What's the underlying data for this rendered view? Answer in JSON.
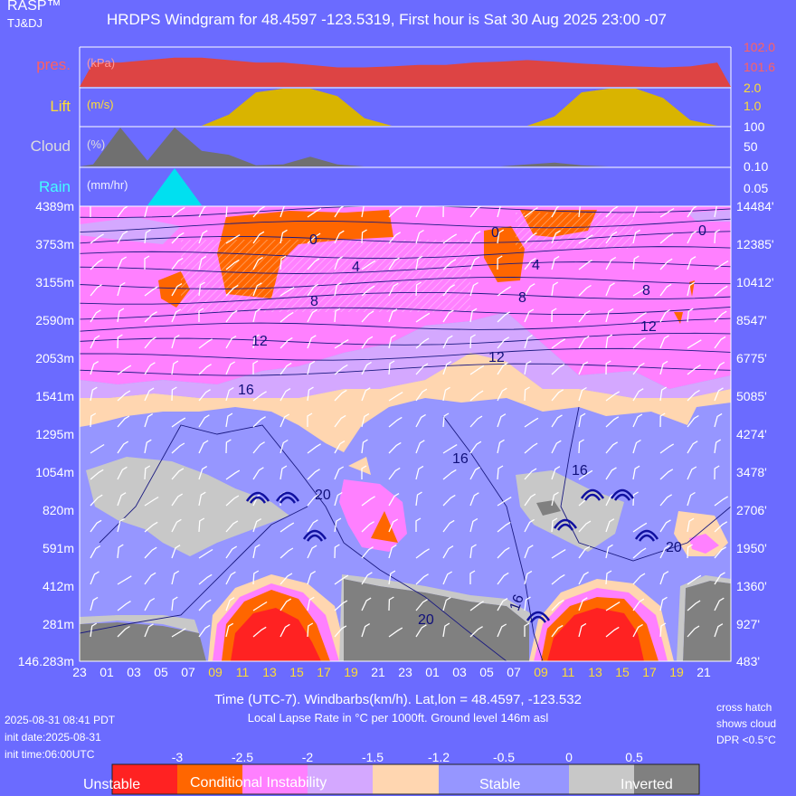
{
  "brand": "RASP™",
  "brand_sub": "TJ&DJ",
  "title": "HRDPS Windgram for 48.4597 -123.5319, First hour is Sat 30 Aug 2025 23:00 -07",
  "panels": {
    "pres": {
      "label": "pres.",
      "unit": "(kPa)",
      "ticks": [
        "102.0",
        "101.6"
      ]
    },
    "lift": {
      "label": "Lift",
      "unit": "(m/s)",
      "ticks": [
        "2.0",
        "1.0"
      ]
    },
    "cloud": {
      "label": "Cloud",
      "unit": "(%)",
      "ticks": [
        "100",
        "50",
        "0.10"
      ]
    },
    "rain": {
      "label": "Rain",
      "unit": "(mm/hr)",
      "ticks": [
        "0.05"
      ]
    }
  },
  "left_ticks": [
    "4389m",
    "3753m",
    "3155m",
    "2590m",
    "2053m",
    "1541m",
    "1295m",
    "1054m",
    "820m",
    "591m",
    "412m",
    "281m",
    "146.283m"
  ],
  "right_ticks": [
    "14484'",
    "12385'",
    "10412'",
    "8547'",
    "6775'",
    "5085'",
    "4274'",
    "3478'",
    "2706'",
    "1950'",
    "1360'",
    "927'",
    "483'"
  ],
  "x_ticks": [
    "23",
    "01",
    "03",
    "05",
    "07",
    "09",
    "11",
    "13",
    "15",
    "17",
    "19",
    "21",
    "23",
    "01",
    "03",
    "05",
    "07",
    "09",
    "11",
    "13",
    "15",
    "17",
    "19",
    "21"
  ],
  "x_caption": "Time (UTC-7). Windbarbs(km/h). Lat,lon = 48.4597, -123.532",
  "lapse_caption": "Local Lapse Rate in °C per 1000ft.   Ground level 146m asl",
  "hatch_note": [
    "cross hatch",
    "shows cloud",
    "DPR <0.5°C"
  ],
  "timestamps": [
    "2025-08-31 08:41 PDT",
    "init date:2025-08-31",
    "init time:06:00UTC"
  ],
  "legend": {
    "numbers": [
      "-3",
      "-2.5",
      "-2",
      "-1.5",
      "-1.2",
      "-0.5",
      "0",
      "0.5"
    ],
    "labels": [
      "Unstable",
      "Conditional Instability",
      "Stable",
      "Inverted"
    ]
  },
  "colors": {
    "background": "#6b6bff",
    "pres": "#dd4444",
    "lift": "#d9b400",
    "cloud": "#707070",
    "rain": "#00e0f0",
    "unstable": "#ff2222",
    "conditional": "#ff6600",
    "pink": "#ff80ff",
    "lilac": "#d4a8ff",
    "peach": "#ffd6b0",
    "stable": "#9696ff",
    "inverted": "#c8c8c8",
    "daytime_tick": "#ffdd33"
  },
  "chart_data": {
    "type": "heatmap",
    "title": "HRDPS Windgram for 48.4597 -123.5319, First hour is Sat 30 Aug 2025 23:00 -07",
    "xlabel": "Time (UTC-7). Windbarbs(km/h). Lat,lon = 48.4597, -123.532",
    "ylabel": "",
    "x_categories": [
      "23",
      "01",
      "03",
      "05",
      "07",
      "09",
      "11",
      "13",
      "15",
      "17",
      "19",
      "21",
      "23",
      "01",
      "03",
      "05",
      "07",
      "09",
      "11",
      "13",
      "15",
      "17",
      "19",
      "21"
    ],
    "y_levels_m": [
      4389,
      3753,
      3155,
      2590,
      2053,
      1541,
      1295,
      1054,
      820,
      591,
      412,
      281,
      146.283
    ],
    "y_levels_ft": [
      14484,
      12385,
      10412,
      8547,
      6775,
      5085,
      4274,
      3478,
      2706,
      1950,
      1360,
      927,
      483
    ],
    "series": [
      {
        "name": "pres.",
        "unit": "kPa",
        "values": [
          101.7,
          101.7,
          101.75,
          101.8,
          101.8,
          101.75,
          101.7,
          101.7,
          101.65,
          101.6,
          101.6,
          101.62,
          101.65,
          101.65,
          101.7,
          101.72,
          101.75,
          101.72,
          101.68,
          101.65,
          101.62,
          101.6,
          101.62,
          101.7
        ]
      },
      {
        "name": "Lift",
        "unit": "m/s",
        "values": [
          0,
          0,
          0,
          0,
          0,
          0.6,
          1.8,
          2.0,
          2.0,
          1.6,
          0.4,
          0,
          0,
          0,
          0,
          0,
          0,
          0.5,
          1.8,
          2.0,
          2.0,
          1.5,
          0.3,
          0
        ]
      },
      {
        "name": "Cloud",
        "unit": "%",
        "values": [
          5,
          100,
          15,
          100,
          40,
          30,
          3,
          5,
          25,
          5,
          0,
          0,
          0,
          0,
          0,
          0,
          5,
          10,
          3,
          0,
          0,
          0,
          0,
          0
        ]
      },
      {
        "name": "Rain",
        "unit": "mm/hr",
        "values": [
          0,
          0,
          0,
          0.05,
          0,
          0,
          0,
          0,
          0,
          0,
          0,
          0,
          0,
          0,
          0,
          0,
          0,
          0,
          0,
          0,
          0,
          0,
          0,
          0
        ]
      }
    ],
    "contour_labels": [
      "0",
      "4",
      "8",
      "12",
      "16",
      "20",
      "0",
      "4",
      "8",
      "12",
      "16",
      "20",
      "0",
      "8",
      "12",
      "16",
      "20"
    ],
    "legend_values": [
      -3,
      -2.5,
      -2,
      -1.5,
      -1.2,
      -0.5,
      0,
      0.5
    ],
    "legend_categories": [
      "Unstable",
      "Conditional Instability",
      "Stable",
      "Inverted"
    ],
    "grid": false
  }
}
